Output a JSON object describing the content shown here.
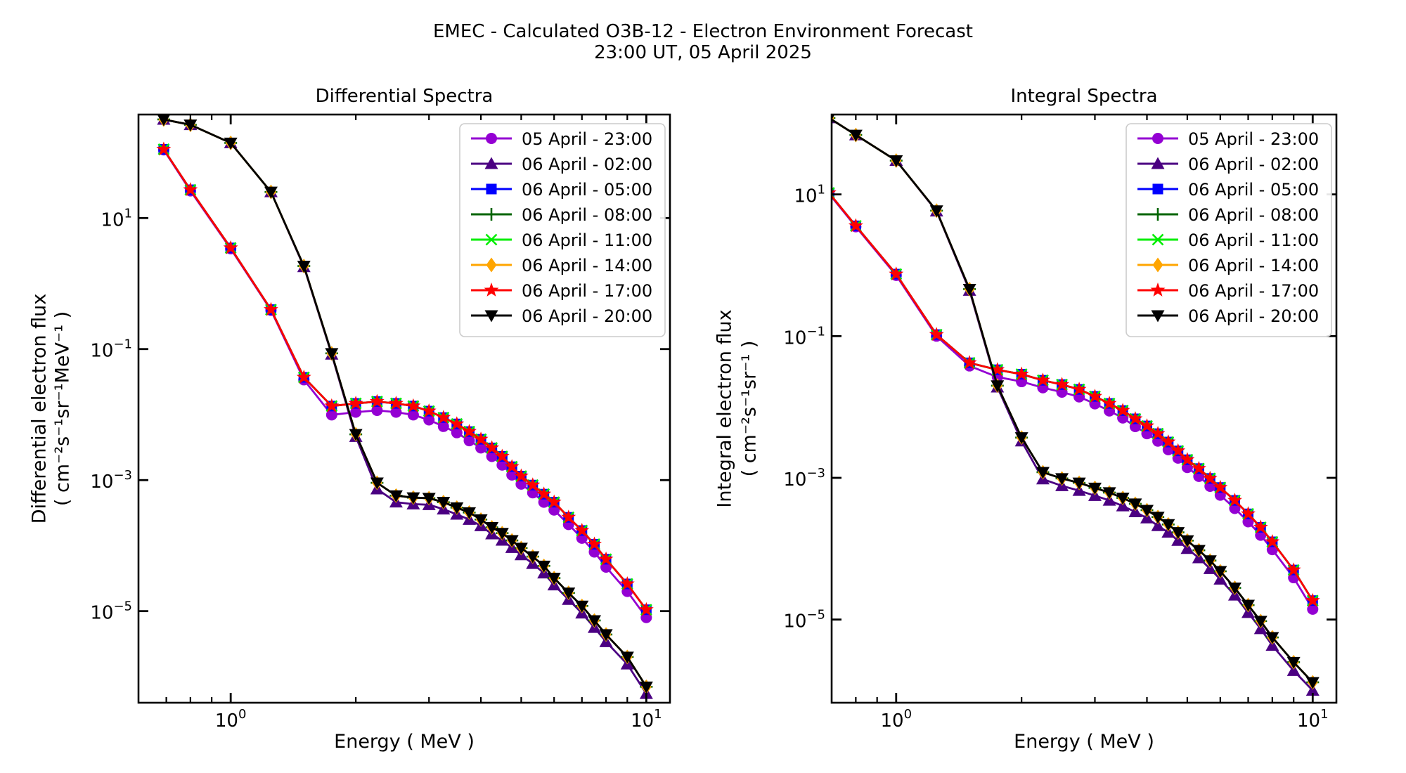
{
  "suptitle": {
    "line1": "EMEC - Calculated O3B-12 - Electron Environment Forecast",
    "line2": "23:00 UT, 05 April 2025"
  },
  "chart_data": [
    {
      "type": "line",
      "title": "Differential Spectra",
      "xlabel": "Energy ( MeV )",
      "ylabel_line1": "Differential electron flux",
      "ylabel_line2": "( cm⁻²s⁻¹sr⁻¹MeV⁻¹ )",
      "xscale": "log",
      "yscale": "log",
      "grid": false,
      "legend_position": "top-right",
      "xlim": [
        0.6,
        11.4
      ],
      "ylim": [
        4e-07,
        380
      ],
      "xticks": [
        {
          "value": 1,
          "exp": "0"
        },
        {
          "value": 10,
          "exp": "1"
        }
      ],
      "yticks": [
        {
          "logv": 1,
          "exp": "1"
        },
        {
          "logv": -1,
          "exp": "−1"
        },
        {
          "logv": -3,
          "exp": "−3"
        },
        {
          "logv": -5,
          "exp": "−5"
        }
      ],
      "x": [
        0.69,
        0.8,
        1.0,
        1.25,
        1.5,
        1.75,
        2.0,
        2.25,
        2.5,
        2.75,
        3.0,
        3.25,
        3.5,
        3.75,
        4.0,
        4.25,
        4.5,
        4.75,
        5.0,
        5.33,
        5.67,
        6.0,
        6.5,
        7.0,
        7.5,
        8.0,
        9.0,
        10.0
      ],
      "series": [
        {
          "label": "05 April - 23:00",
          "color": "#9400d3",
          "marker": "circle",
          "values": [
            110,
            26,
            3.4,
            0.39,
            0.034,
            0.0099,
            0.0109,
            0.0116,
            0.0109,
            0.0099,
            0.0083,
            0.0066,
            0.0053,
            0.004,
            0.0031,
            0.0023,
            0.0017,
            0.0012,
            0.00087,
            0.00064,
            0.00046,
            0.00035,
            0.00021,
            0.00013,
            8e-05,
            4.7e-05,
            2e-05,
            8e-06
          ]
        },
        {
          "label": "06 April - 02:00",
          "color": "#4b0082",
          "marker": "triangle-up",
          "values": [
            320,
            265,
            140,
            25,
            1.8,
            0.083,
            0.0046,
            0.00073,
            0.00046,
            0.00043,
            0.00042,
            0.00036,
            0.0003,
            0.00025,
            0.0002,
            0.00015,
            0.00012,
            9.3e-05,
            7.2e-05,
            5.3e-05,
            3.8e-05,
            2.5e-05,
            1.5e-05,
            9.3e-06,
            5.6e-06,
            3.4e-06,
            1.55e-06,
            5.5e-07
          ]
        },
        {
          "label": "06 April - 05:00",
          "color": "#0000ff",
          "marker": "square",
          "values": [
            112,
            27,
            3.5,
            0.4,
            0.037,
            0.0135,
            0.0148,
            0.0158,
            0.0148,
            0.0135,
            0.0113,
            0.009,
            0.0072,
            0.0055,
            0.0042,
            0.0031,
            0.0023,
            0.0016,
            0.00115,
            0.00084,
            0.00061,
            0.00046,
            0.00027,
            0.00017,
            0.000105,
            6.2e-05,
            2.6e-05,
            1.05e-05
          ]
        },
        {
          "label": "06 April - 08:00",
          "color": "#006400",
          "marker": "plus",
          "values": [
            320,
            265,
            140,
            25,
            1.85,
            0.086,
            0.005,
            0.00091,
            0.00058,
            0.00054,
            0.00053,
            0.00046,
            0.00038,
            0.00032,
            0.00025,
            0.00019,
            0.000155,
            0.00012,
            9.2e-05,
            6.8e-05,
            4.9e-05,
            3.2e-05,
            1.9e-05,
            1.2e-05,
            7.2e-06,
            4.4e-06,
            2e-06,
            7e-07
          ]
        },
        {
          "label": "06 April - 11:00",
          "color": "#00ee00",
          "marker": "x",
          "values": [
            112,
            27,
            3.5,
            0.4,
            0.037,
            0.0135,
            0.0148,
            0.0158,
            0.0148,
            0.0135,
            0.0113,
            0.009,
            0.0072,
            0.0055,
            0.0042,
            0.0031,
            0.0023,
            0.0016,
            0.00115,
            0.00084,
            0.00061,
            0.00046,
            0.00027,
            0.00017,
            0.000105,
            6.2e-05,
            2.6e-05,
            1.05e-05
          ]
        },
        {
          "label": "06 April - 14:00",
          "color": "#ffa500",
          "marker": "diamond",
          "values": [
            320,
            265,
            140,
            25,
            1.85,
            0.086,
            0.005,
            0.00091,
            0.00058,
            0.00054,
            0.00053,
            0.00046,
            0.00038,
            0.00032,
            0.00025,
            0.00019,
            0.000155,
            0.00012,
            9.2e-05,
            6.8e-05,
            4.9e-05,
            3.2e-05,
            1.9e-05,
            1.2e-05,
            7.2e-06,
            4.4e-06,
            2e-06,
            7e-07
          ]
        },
        {
          "label": "06 April - 17:00",
          "color": "#ff0000",
          "marker": "star",
          "values": [
            112,
            27,
            3.5,
            0.4,
            0.037,
            0.0135,
            0.0148,
            0.0158,
            0.0148,
            0.0135,
            0.0113,
            0.009,
            0.0072,
            0.0055,
            0.0042,
            0.0031,
            0.0023,
            0.0016,
            0.00115,
            0.00084,
            0.00061,
            0.00046,
            0.00027,
            0.00017,
            0.000105,
            6.2e-05,
            2.6e-05,
            1.05e-05
          ]
        },
        {
          "label": "06 April - 20:00",
          "color": "#000000",
          "marker": "triangle-down",
          "values": [
            320,
            265,
            140,
            25,
            1.85,
            0.086,
            0.005,
            0.00091,
            0.00058,
            0.00054,
            0.00053,
            0.00046,
            0.00038,
            0.00032,
            0.00025,
            0.00019,
            0.000155,
            0.00012,
            9.2e-05,
            6.8e-05,
            4.9e-05,
            3.2e-05,
            1.9e-05,
            1.2e-05,
            7.2e-06,
            4.4e-06,
            2e-06,
            7e-07
          ]
        }
      ]
    },
    {
      "type": "line",
      "title": "Integral Spectra",
      "xlabel": "Energy ( MeV )",
      "ylabel_line1": "Integral electron flux",
      "ylabel_line2": "( cm⁻²s⁻¹sr⁻¹ )",
      "xscale": "log",
      "yscale": "log",
      "grid": false,
      "legend_position": "top-right",
      "xlim": [
        0.7,
        11.4
      ],
      "ylim": [
        6.7e-07,
        134
      ],
      "xticks": [
        {
          "value": 1,
          "exp": "0"
        },
        {
          "value": 10,
          "exp": "1"
        }
      ],
      "yticks": [
        {
          "logv": 1,
          "exp": "1"
        },
        {
          "logv": -1,
          "exp": "−1"
        },
        {
          "logv": -3,
          "exp": "−3"
        },
        {
          "logv": -5,
          "exp": "−5"
        }
      ],
      "x": [
        0.69,
        0.8,
        1.0,
        1.25,
        1.5,
        1.75,
        2.0,
        2.25,
        2.5,
        2.75,
        3.0,
        3.25,
        3.5,
        3.75,
        4.0,
        4.25,
        4.5,
        4.75,
        5.0,
        5.33,
        5.67,
        6.0,
        6.5,
        7.0,
        7.5,
        8.0,
        9.0,
        10.0
      ],
      "series": [
        {
          "label": "05 April - 23:00",
          "color": "#9400d3",
          "marker": "circle",
          "values": [
            10.2,
            3.5,
            0.72,
            0.1,
            0.038,
            0.0265,
            0.0228,
            0.0187,
            0.0162,
            0.0139,
            0.0111,
            0.0088,
            0.007,
            0.0053,
            0.0042,
            0.0033,
            0.0025,
            0.0019,
            0.0014,
            0.00105,
            0.00076,
            0.00057,
            0.00037,
            0.00024,
            0.000155,
            9.7e-05,
            3.9e-05,
            1.4e-05
          ]
        },
        {
          "label": "06 April - 02:00",
          "color": "#4b0082",
          "marker": "triangle-up",
          "values": [
            120,
            69,
            30,
            5.8,
            0.44,
            0.019,
            0.0033,
            0.00096,
            0.00077,
            0.00066,
            0.00056,
            0.00048,
            0.0004,
            0.00033,
            0.00027,
            0.00021,
            0.00017,
            0.00013,
            0.0001,
            7.4e-05,
            5.2e-05,
            3.7e-05,
            2.2e-05,
            1.25e-05,
            7.4e-06,
            4.3e-06,
            1.9e-06,
            1e-06
          ]
        },
        {
          "label": "06 April - 05:00",
          "color": "#0000ff",
          "marker": "square",
          "values": [
            10.5,
            3.6,
            0.75,
            0.105,
            0.042,
            0.0335,
            0.029,
            0.0238,
            0.0207,
            0.0177,
            0.0141,
            0.0112,
            0.0089,
            0.0068,
            0.0054,
            0.0042,
            0.0032,
            0.0024,
            0.0018,
            0.00135,
            0.00098,
            0.00073,
            0.00048,
            0.00031,
            0.0002,
            0.000125,
            5e-05,
            1.85e-05
          ]
        },
        {
          "label": "06 April - 08:00",
          "color": "#006400",
          "marker": "plus",
          "values": [
            120,
            69,
            30,
            5.9,
            0.46,
            0.02,
            0.0037,
            0.0012,
            0.00098,
            0.00085,
            0.00072,
            0.00062,
            0.00052,
            0.00043,
            0.00035,
            0.00028,
            0.00022,
            0.00017,
            0.00013,
            9.5e-05,
            6.8e-05,
            4.8e-05,
            2.8e-05,
            1.6e-05,
            9.5e-06,
            5.6e-06,
            2.5e-06,
            1.3e-06
          ]
        },
        {
          "label": "06 April - 11:00",
          "color": "#00ee00",
          "marker": "x",
          "values": [
            10.5,
            3.6,
            0.75,
            0.105,
            0.042,
            0.0335,
            0.029,
            0.0238,
            0.0207,
            0.0177,
            0.0141,
            0.0112,
            0.0089,
            0.0068,
            0.0054,
            0.0042,
            0.0032,
            0.0024,
            0.0018,
            0.00135,
            0.00098,
            0.00073,
            0.00048,
            0.00031,
            0.0002,
            0.000125,
            5e-05,
            1.85e-05
          ]
        },
        {
          "label": "06 April - 14:00",
          "color": "#ffa500",
          "marker": "diamond",
          "values": [
            120,
            69,
            30,
            5.9,
            0.46,
            0.02,
            0.0037,
            0.0012,
            0.00098,
            0.00085,
            0.00072,
            0.00062,
            0.00052,
            0.00043,
            0.00035,
            0.00028,
            0.00022,
            0.00017,
            0.00013,
            9.5e-05,
            6.8e-05,
            4.8e-05,
            2.8e-05,
            1.6e-05,
            9.5e-06,
            5.6e-06,
            2.5e-06,
            1.3e-06
          ]
        },
        {
          "label": "06 April - 17:00",
          "color": "#ff0000",
          "marker": "star",
          "values": [
            10.5,
            3.6,
            0.75,
            0.105,
            0.042,
            0.0335,
            0.029,
            0.0238,
            0.0207,
            0.0177,
            0.0141,
            0.0112,
            0.0089,
            0.0068,
            0.0054,
            0.0042,
            0.0032,
            0.0024,
            0.0018,
            0.00135,
            0.00098,
            0.00073,
            0.00048,
            0.00031,
            0.0002,
            0.000125,
            5e-05,
            1.85e-05
          ]
        },
        {
          "label": "06 April - 20:00",
          "color": "#000000",
          "marker": "triangle-down",
          "values": [
            120,
            69,
            30,
            5.9,
            0.46,
            0.02,
            0.0037,
            0.0012,
            0.00098,
            0.00085,
            0.00072,
            0.00062,
            0.00052,
            0.00043,
            0.00035,
            0.00028,
            0.00022,
            0.00017,
            0.00013,
            9.5e-05,
            6.8e-05,
            4.8e-05,
            2.8e-05,
            1.6e-05,
            9.5e-06,
            5.6e-06,
            2.5e-06,
            1.3e-06
          ]
        }
      ]
    }
  ]
}
